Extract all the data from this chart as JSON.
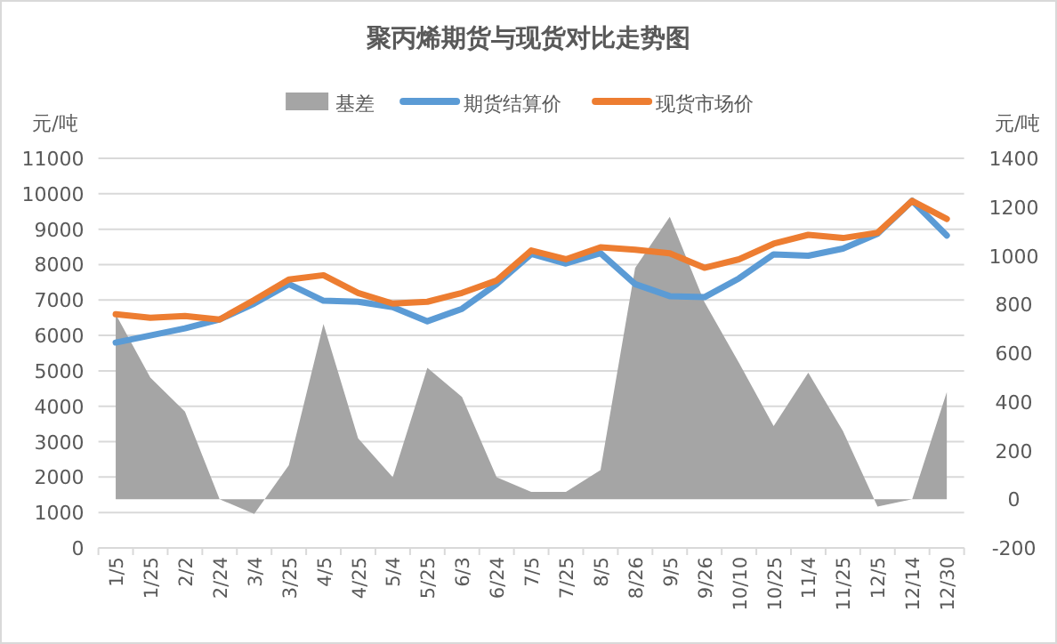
{
  "chart_data": {
    "type": "line",
    "title": "聚丙烯期货与现货对比走势图",
    "ylabel": "元/吨",
    "y2label": "元/吨",
    "categories": [
      "1/5",
      "1/25",
      "2/2",
      "2/24",
      "3/4",
      "3/25",
      "4/5",
      "4/25",
      "5/4",
      "5/25",
      "6/3",
      "6/24",
      "7/5",
      "7/25",
      "8/5",
      "8/26",
      "9/5",
      "9/26",
      "10/10",
      "10/25",
      "11/4",
      "11/25",
      "12/5",
      "12/14",
      "12/30"
    ],
    "series": [
      {
        "name": "基差",
        "type": "area",
        "axis": "y2",
        "color": "#a5a5a5",
        "values": [
          760,
          500,
          360,
          0,
          -60,
          140,
          720,
          250,
          90,
          540,
          420,
          90,
          30,
          30,
          120,
          950,
          1160,
          810,
          560,
          300,
          520,
          280,
          -30,
          0,
          440
        ]
      },
      {
        "name": "期货结算价",
        "color": "#5b9bd5",
        "values": [
          5800,
          6000,
          6200,
          6450,
          6900,
          7450,
          6980,
          6950,
          6800,
          6400,
          6750,
          7450,
          8300,
          8030,
          8320,
          7450,
          7110,
          7080,
          7610,
          8290,
          8250,
          8450,
          8870,
          9800,
          8820
        ]
      },
      {
        "name": "现货市场价",
        "color": "#ed7d31",
        "values": [
          6600,
          6500,
          6550,
          6450,
          7000,
          7580,
          7700,
          7200,
          6900,
          6950,
          7200,
          7550,
          8400,
          8150,
          8490,
          8420,
          8320,
          7910,
          8150,
          8590,
          8840,
          8750,
          8900,
          9800,
          9290
        ]
      }
    ],
    "ylim": [
      0,
      11000
    ],
    "yticks": [
      0,
      1000,
      2000,
      3000,
      4000,
      5000,
      6000,
      7000,
      8000,
      9000,
      10000,
      11000
    ],
    "y2lim": [
      -200,
      1400
    ],
    "y2ticks": [
      -200,
      0,
      200,
      400,
      600,
      800,
      1000,
      1200,
      1400
    ],
    "grid": "y",
    "legend": "top",
    "line_style": "solid",
    "marker": "none"
  }
}
